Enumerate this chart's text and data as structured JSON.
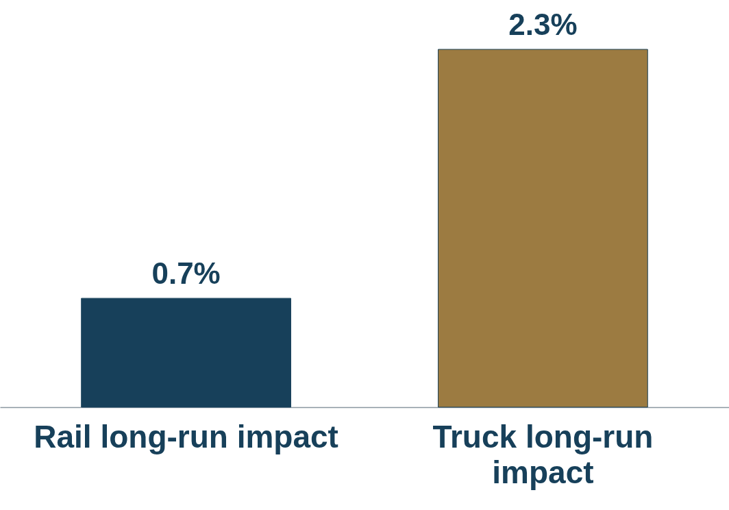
{
  "chart_data": {
    "type": "bar",
    "categories": [
      "Rail long-run impact",
      "Truck long-run impact"
    ],
    "values": [
      0.7,
      2.3
    ],
    "colors": [
      "#17405a",
      "#9c7b41"
    ],
    "value_labels": [
      "0.7%",
      "2.3%"
    ],
    "grid": false,
    "tick_labels": "x"
  }
}
